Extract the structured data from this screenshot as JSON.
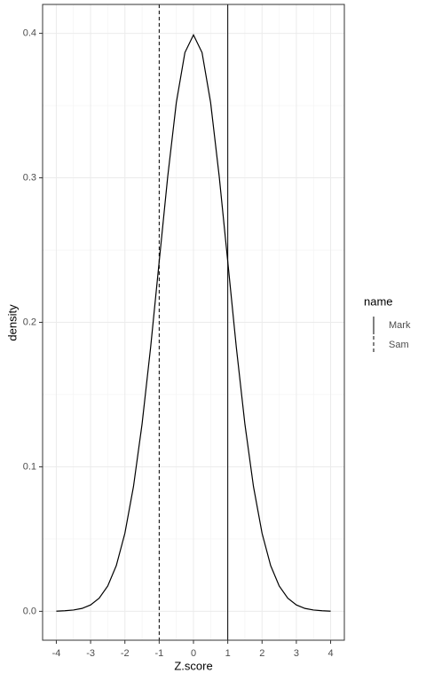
{
  "chart_data": {
    "type": "line",
    "x": [
      -4,
      -3.75,
      -3.5,
      -3.25,
      -3,
      -2.75,
      -2.5,
      -2.25,
      -2,
      -1.75,
      -1.5,
      -1.25,
      -1,
      -0.75,
      -0.5,
      -0.25,
      0,
      0.25,
      0.5,
      0.75,
      1,
      1.25,
      1.5,
      1.75,
      2,
      2.25,
      2.5,
      2.75,
      3,
      3.25,
      3.5,
      3.75,
      4
    ],
    "y": [
      0.0001,
      0.0004,
      0.0009,
      0.002,
      0.0044,
      0.0091,
      0.0175,
      0.0317,
      0.054,
      0.0863,
      0.1295,
      0.1826,
      0.242,
      0.3011,
      0.3521,
      0.3867,
      0.3989,
      0.3867,
      0.3521,
      0.3011,
      0.242,
      0.1826,
      0.1295,
      0.0863,
      0.054,
      0.0317,
      0.0175,
      0.0091,
      0.0044,
      0.002,
      0.0009,
      0.0004,
      0.0001
    ],
    "color": "#000000",
    "vlines": [
      {
        "name": "Mark",
        "x": 1,
        "dashed": false
      },
      {
        "name": "Sam",
        "x": -1,
        "dashed": true
      }
    ],
    "legend_title": "name",
    "x_label": "Z.score",
    "y_label": "density",
    "xlim": [
      -4.4,
      4.4
    ],
    "ylim": [
      -0.02,
      0.42
    ],
    "xticks": [
      -4,
      -3,
      -2,
      -1,
      0,
      1,
      2,
      3,
      4
    ],
    "yticks": [
      {
        "value": 0,
        "label": "0.0"
      },
      0.1,
      0.2,
      0.3,
      0.4
    ],
    "grid": true
  }
}
